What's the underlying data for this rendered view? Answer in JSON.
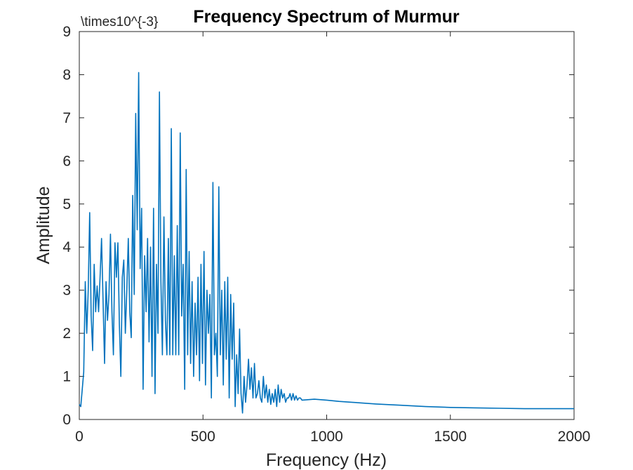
{
  "chart_data": {
    "type": "line",
    "title": "Frequency Spectrum of Murmur",
    "xlabel": "Frequency (Hz)",
    "ylabel": "Amplitude",
    "exponent_label": "\\times10^{-3}",
    "xlim": [
      0,
      2000
    ],
    "ylim": [
      0,
      9
    ],
    "xticks": [
      0,
      500,
      1000,
      1500,
      2000
    ],
    "yticks": [
      0,
      1,
      2,
      3,
      4,
      5,
      6,
      7,
      8,
      9
    ],
    "grid": false,
    "line_color": "#0072BD",
    "series": [
      {
        "x": [
          0,
          6,
          12,
          18,
          24,
          30,
          36,
          42,
          48,
          54,
          60,
          66,
          72,
          78,
          84,
          90,
          96,
          102,
          108,
          114,
          120,
          126,
          132,
          138,
          144,
          150,
          156,
          162,
          168,
          174,
          180,
          186,
          192,
          198,
          204,
          210,
          216,
          222,
          228,
          234,
          240,
          246,
          252,
          258,
          264,
          270,
          276,
          282,
          288,
          294,
          300,
          306,
          312,
          318,
          324,
          330,
          336,
          342,
          348,
          354,
          360,
          366,
          372,
          378,
          384,
          390,
          396,
          402,
          408,
          414,
          420,
          426,
          432,
          438,
          444,
          450,
          456,
          462,
          468,
          474,
          480,
          486,
          492,
          498,
          504,
          510,
          516,
          522,
          528,
          534,
          540,
          546,
          552,
          558,
          564,
          570,
          576,
          582,
          588,
          594,
          600,
          606,
          612,
          618,
          624,
          630,
          636,
          642,
          648,
          654,
          660,
          666,
          672,
          678,
          684,
          690,
          696,
          702,
          708,
          714,
          720,
          726,
          732,
          738,
          744,
          750,
          756,
          762,
          768,
          774,
          780,
          786,
          792,
          798,
          804,
          810,
          816,
          822,
          828,
          834,
          840,
          846,
          852,
          858,
          864,
          870,
          876,
          882,
          888,
          894,
          900,
          950,
          1000,
          1050,
          1100,
          1200,
          1300,
          1400,
          1500,
          1600,
          1700,
          1800,
          1900,
          2000
        ],
        "y": [
          0.35,
          0.3,
          0.7,
          1.1,
          3.2,
          2.0,
          3.0,
          4.8,
          2.4,
          1.6,
          3.6,
          2.5,
          3.1,
          2.5,
          3.3,
          4.2,
          2.8,
          1.3,
          3.2,
          2.3,
          2.9,
          4.3,
          2.5,
          1.5,
          4.1,
          3.3,
          4.1,
          2.2,
          1.0,
          3.3,
          3.7,
          2.0,
          3.0,
          4.2,
          2.5,
          1.9,
          5.2,
          2.9,
          7.1,
          4.4,
          8.05,
          3.5,
          4.9,
          0.7,
          3.8,
          2.5,
          4.2,
          1.8,
          4.0,
          1.0,
          4.9,
          0.6,
          3.6,
          2.0,
          7.6,
          3.2,
          1.5,
          4.7,
          2.3,
          1.5,
          4.2,
          1.5,
          6.75,
          1.5,
          3.8,
          1.5,
          4.5,
          1.5,
          6.65,
          2.4,
          3.6,
          0.7,
          5.8,
          1.5,
          3.9,
          1.3,
          3.2,
          1.0,
          2.7,
          1.5,
          3.3,
          0.9,
          3.6,
          1.3,
          3.9,
          0.8,
          3.0,
          2.0,
          2.9,
          0.5,
          5.5,
          1.5,
          2.0,
          1.0,
          5.4,
          1.5,
          3.0,
          0.8,
          3.2,
          1.4,
          3.3,
          0.5,
          2.9,
          1.4,
          2.7,
          0.3,
          1.5,
          0.6,
          2.1,
          0.6,
          0.15,
          1.0,
          0.4,
          0.8,
          1.4,
          0.7,
          1.2,
          0.5,
          1.3,
          0.5,
          0.6,
          0.9,
          0.5,
          0.4,
          1.0,
          0.5,
          0.8,
          0.4,
          0.7,
          0.35,
          0.6,
          0.4,
          0.7,
          0.3,
          0.8,
          0.4,
          0.7,
          0.5,
          0.6,
          0.4,
          0.5,
          0.5,
          0.6,
          0.45,
          0.6,
          0.45,
          0.55,
          0.45,
          0.5,
          0.5,
          0.45,
          0.47,
          0.45,
          0.42,
          0.4,
          0.36,
          0.33,
          0.3,
          0.28,
          0.27,
          0.26,
          0.25,
          0.25,
          0.25
        ]
      }
    ]
  }
}
